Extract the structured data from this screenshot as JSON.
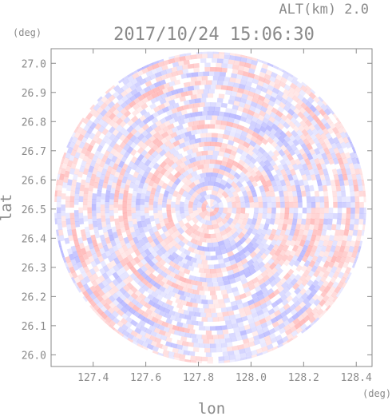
{
  "chart_data": {
    "type": "heatmap",
    "header": "ALT(km) 2.0",
    "title": "2017/10/24 15:06:30",
    "xlabel": "lon",
    "ylabel": "lat",
    "x_unit": "(deg)",
    "y_unit": "(deg)",
    "xlim": [
      127.24,
      128.46
    ],
    "ylim": [
      25.96,
      27.05
    ],
    "x_ticks": [
      "127.4",
      "127.6",
      "127.8",
      "128.0",
      "128.2",
      "128.4"
    ],
    "y_ticks": [
      "26.0",
      "26.1",
      "26.2",
      "26.3",
      "26.4",
      "26.5",
      "26.6",
      "26.7",
      "26.8",
      "26.9",
      "27.0"
    ],
    "center": {
      "lon": 127.845,
      "lat": 26.505
    },
    "radius_lat_deg": 0.535,
    "colors": {
      "positive": "#ff8c8c",
      "negative": "#8c8cff",
      "axis": "#8a8a8a"
    }
  }
}
